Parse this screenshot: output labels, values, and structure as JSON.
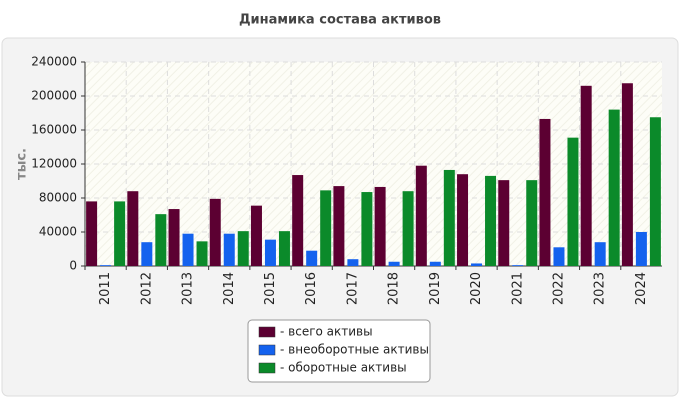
{
  "chart_data": {
    "type": "bar",
    "title": "Динамика состава активов",
    "y_label": "тыс.",
    "categories": [
      "2011",
      "2012",
      "2013",
      "2014",
      "2015",
      "2016",
      "2017",
      "2018",
      "2019",
      "2020",
      "2021",
      "2022",
      "2023",
      "2024"
    ],
    "series": [
      {
        "name": "- всего активы",
        "color": "#5c0032",
        "values": [
          76000,
          88000,
          67000,
          79000,
          71000,
          107000,
          94000,
          93000,
          118000,
          108000,
          101000,
          173000,
          212000,
          215000
        ]
      },
      {
        "name": "- внеоборотные активы",
        "color": "#1462ee",
        "values": [
          1000,
          28000,
          38000,
          38000,
          31000,
          18000,
          8000,
          5000,
          5000,
          3000,
          1000,
          22000,
          28000,
          40000
        ]
      },
      {
        "name": "- оборотные активы",
        "color": "#0b8a2a",
        "values": [
          76000,
          61000,
          29000,
          41000,
          41000,
          89000,
          87000,
          88000,
          113000,
          106000,
          101000,
          151000,
          184000,
          175000
        ]
      }
    ],
    "ylim": [
      0,
      240000
    ],
    "yticks": [
      0,
      40000,
      80000,
      120000,
      160000,
      200000,
      240000
    ],
    "grid": true
  }
}
